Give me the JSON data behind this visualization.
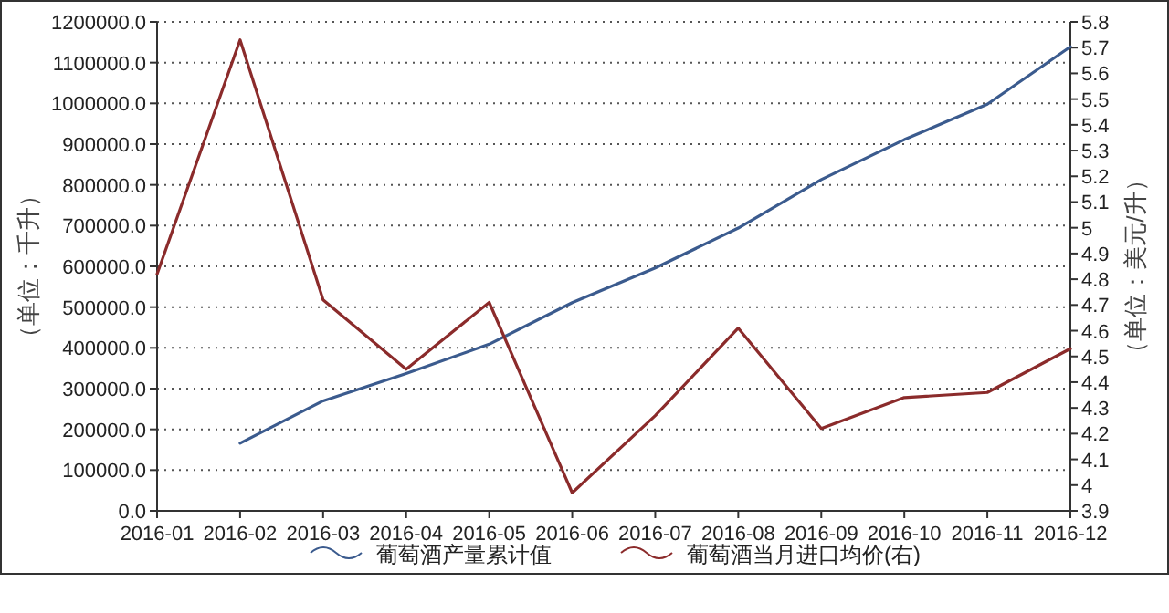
{
  "chart_data": {
    "type": "line",
    "ylabel": "（单位：千升）",
    "y2label": "（单位：美元/升）",
    "categories": [
      "2016-01",
      "2016-02",
      "2016-03",
      "2016-04",
      "2016-05",
      "2016-06",
      "2016-07",
      "2016-08",
      "2016-09",
      "2016-10",
      "2016-11",
      "2016-12"
    ],
    "series": [
      {
        "name": "葡萄酒产量累计值",
        "color": "#3b5b8e",
        "values": [
          null,
          166000,
          270000,
          337000,
          409000,
          511000,
          596000,
          694000,
          813000,
          911000,
          998000,
          1139000
        ]
      },
      {
        "name": "葡萄酒当月进口均价(右)",
        "color": "#8b2b2b",
        "axis": "y2",
        "values": [
          4.82,
          5.73,
          4.72,
          4.45,
          4.71,
          3.97,
          4.27,
          4.61,
          4.22,
          4.34,
          4.36,
          4.53
        ]
      }
    ],
    "ylim": [
      0,
      1200000
    ],
    "yticks": [
      {
        "value": 0,
        "label": "0.0"
      },
      {
        "value": 100000,
        "label": "100000.0"
      },
      {
        "value": 200000,
        "label": "200000.0"
      },
      {
        "value": 300000,
        "label": "300000.0"
      },
      {
        "value": 400000,
        "label": "400000.0"
      },
      {
        "value": 500000,
        "label": "500000.0"
      },
      {
        "value": 600000,
        "label": "600000.0"
      },
      {
        "value": 700000,
        "label": "700000.0"
      },
      {
        "value": 800000,
        "label": "800000.0"
      },
      {
        "value": 900000,
        "label": "900000.0"
      },
      {
        "value": 1000000,
        "label": "1000000.0"
      },
      {
        "value": 1100000,
        "label": "1100000.0"
      },
      {
        "value": 1200000,
        "label": "1200000.0"
      }
    ],
    "y2lim": [
      3.9,
      5.8
    ],
    "y2ticks": [
      3.9,
      4,
      4.1,
      4.2,
      4.3,
      4.4,
      4.5,
      4.6,
      4.7,
      4.8,
      4.9,
      5,
      5.1,
      5.2,
      5.3,
      5.4,
      5.5,
      5.6,
      5.7,
      5.8
    ],
    "grid": "y",
    "legend": "bottom",
    "marker": "none",
    "line_style": "solid"
  }
}
